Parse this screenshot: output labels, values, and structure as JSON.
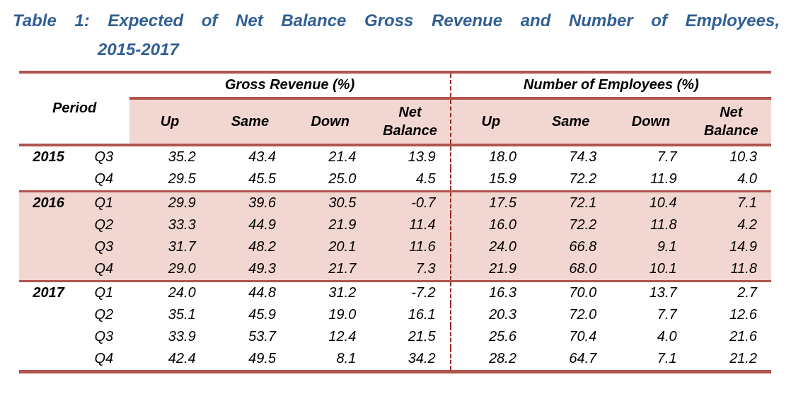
{
  "title": {
    "line1": "Table 1: Expected of Net Balance Gross Revenue and Number of Employees,",
    "line2": "2015-2017"
  },
  "colors": {
    "title_blue": "#315f94",
    "rule_red": "#b0544d",
    "divider_dashed_red": "#992c22",
    "band_pink": "#f2d6d2",
    "text_black": "#000000"
  },
  "table": {
    "period_label": "Period",
    "group_headers": [
      "Gross Revenue (%)",
      "Number of Employees (%)"
    ],
    "sub_headers": [
      "Up",
      "Same",
      "Down",
      "Net Balance"
    ],
    "rows": [
      {
        "year": "2015",
        "quarter": "Q3",
        "gross_up": "35.2",
        "gross_same": "43.4",
        "gross_down": "21.4",
        "gross_net": "13.9",
        "emp_up": "18.0",
        "emp_same": "74.3",
        "emp_down": "7.7",
        "emp_net": "10.3"
      },
      {
        "year": "",
        "quarter": "Q4",
        "gross_up": "29.5",
        "gross_same": "45.5",
        "gross_down": "25.0",
        "gross_net": "4.5",
        "emp_up": "15.9",
        "emp_same": "72.2",
        "emp_down": "11.9",
        "emp_net": "4.0"
      },
      {
        "year": "2016",
        "quarter": "Q1",
        "gross_up": "29.9",
        "gross_same": "39.6",
        "gross_down": "30.5",
        "gross_net": "-0.7",
        "emp_up": "17.5",
        "emp_same": "72.1",
        "emp_down": "10.4",
        "emp_net": "7.1"
      },
      {
        "year": "",
        "quarter": "Q2",
        "gross_up": "33.3",
        "gross_same": "44.9",
        "gross_down": "21.9",
        "gross_net": "11.4",
        "emp_up": "16.0",
        "emp_same": "72.2",
        "emp_down": "11.8",
        "emp_net": "4.2"
      },
      {
        "year": "",
        "quarter": "Q3",
        "gross_up": "31.7",
        "gross_same": "48.2",
        "gross_down": "20.1",
        "gross_net": "11.6",
        "emp_up": "24.0",
        "emp_same": "66.8",
        "emp_down": "9.1",
        "emp_net": "14.9"
      },
      {
        "year": "",
        "quarter": "Q4",
        "gross_up": "29.0",
        "gross_same": "49.3",
        "gross_down": "21.7",
        "gross_net": "7.3",
        "emp_up": "21.9",
        "emp_same": "68.0",
        "emp_down": "10.1",
        "emp_net": "11.8"
      },
      {
        "year": "2017",
        "quarter": "Q1",
        "gross_up": "24.0",
        "gross_same": "44.8",
        "gross_down": "31.2",
        "gross_net": "-7.2",
        "emp_up": "16.3",
        "emp_same": "70.0",
        "emp_down": "13.7",
        "emp_net": "2.7"
      },
      {
        "year": "",
        "quarter": "Q2",
        "gross_up": "35.1",
        "gross_same": "45.9",
        "gross_down": "19.0",
        "gross_net": "16.1",
        "emp_up": "20.3",
        "emp_same": "72.0",
        "emp_down": "7.7",
        "emp_net": "12.6"
      },
      {
        "year": "",
        "quarter": "Q3",
        "gross_up": "33.9",
        "gross_same": "53.7",
        "gross_down": "12.4",
        "gross_net": "21.5",
        "emp_up": "25.6",
        "emp_same": "70.4",
        "emp_down": "4.0",
        "emp_net": "21.6"
      },
      {
        "year": "",
        "quarter": "Q4",
        "gross_up": "42.4",
        "gross_same": "49.5",
        "gross_down": "8.1",
        "gross_net": "34.2",
        "emp_up": "28.2",
        "emp_same": "64.7",
        "emp_down": "7.1",
        "emp_net": "21.2"
      }
    ]
  },
  "chart_data": {
    "type": "table",
    "title": "Table 1: Expected of Net Balance Gross Revenue and Number of Employees, 2015-2017",
    "column_groups": [
      "Gross Revenue (%)",
      "Number of Employees (%)"
    ],
    "columns": [
      "Year",
      "Quarter",
      "Gross Revenue Up",
      "Gross Revenue Same",
      "Gross Revenue Down",
      "Gross Revenue Net Balance",
      "Employees Up",
      "Employees Same",
      "Employees Down",
      "Employees Net Balance"
    ],
    "rows": [
      [
        "2015",
        "Q3",
        35.2,
        43.4,
        21.4,
        13.9,
        18.0,
        74.3,
        7.7,
        10.3
      ],
      [
        "2015",
        "Q4",
        29.5,
        45.5,
        25.0,
        4.5,
        15.9,
        72.2,
        11.9,
        4.0
      ],
      [
        "2016",
        "Q1",
        29.9,
        39.6,
        30.5,
        -0.7,
        17.5,
        72.1,
        10.4,
        7.1
      ],
      [
        "2016",
        "Q2",
        33.3,
        44.9,
        21.9,
        11.4,
        16.0,
        72.2,
        11.8,
        4.2
      ],
      [
        "2016",
        "Q3",
        31.7,
        48.2,
        20.1,
        11.6,
        24.0,
        66.8,
        9.1,
        14.9
      ],
      [
        "2016",
        "Q4",
        29.0,
        49.3,
        21.7,
        7.3,
        21.9,
        68.0,
        10.1,
        11.8
      ],
      [
        "2017",
        "Q1",
        24.0,
        44.8,
        31.2,
        -7.2,
        16.3,
        70.0,
        13.7,
        2.7
      ],
      [
        "2017",
        "Q2",
        35.1,
        45.9,
        19.0,
        16.1,
        20.3,
        72.0,
        7.7,
        12.6
      ],
      [
        "2017",
        "Q3",
        33.9,
        53.7,
        12.4,
        21.5,
        25.6,
        70.4,
        4.0,
        21.6
      ],
      [
        "2017",
        "Q4",
        42.4,
        49.5,
        8.1,
        34.2,
        28.2,
        64.7,
        7.1,
        21.2
      ]
    ]
  }
}
